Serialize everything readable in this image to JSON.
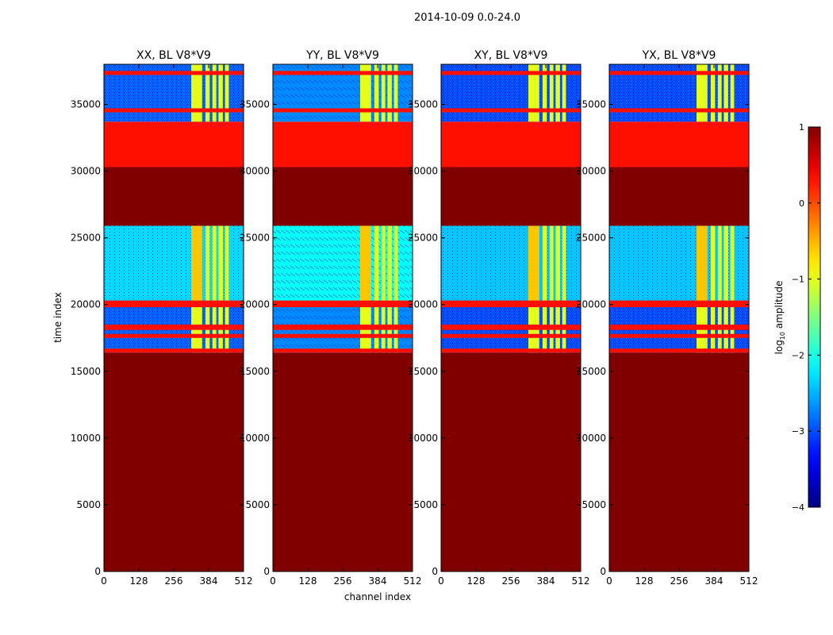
{
  "chart_data": {
    "type": "heatmap",
    "title": "2014-10-09 0.0-24.0",
    "xlabel": "channel index",
    "ylabel": "time index",
    "xlim": [
      0,
      512
    ],
    "ylim": [
      0,
      38000
    ],
    "xticks": [
      0,
      128,
      256,
      384,
      512
    ],
    "xtick_labels": [
      "0",
      "128",
      "256",
      "384",
      "512"
    ],
    "yticks": [
      0,
      5000,
      10000,
      15000,
      20000,
      25000,
      30000,
      35000
    ],
    "ytick_labels": [
      "0",
      "5000",
      "10000",
      "15000",
      "20000",
      "25000",
      "30000",
      "35000"
    ],
    "colorbar": {
      "label": "log10 amplitude",
      "label_prefix": "log",
      "label_sub": "10",
      "label_suffix": " amplitude",
      "range": [
        -4,
        1
      ],
      "ticks": [
        1,
        0,
        -1,
        -2,
        -3,
        -4
      ],
      "tick_labels": [
        "1",
        "0",
        "−1",
        "−2",
        "−3",
        "−4"
      ],
      "colormap": "jet"
    },
    "panels": [
      {
        "name": "XX, BL V8*V9",
        "quiet_level": -2.9,
        "texture": "noisy"
      },
      {
        "name": "YY, BL V8*V9",
        "quiet_level": -2.7,
        "texture": "striated"
      },
      {
        "name": "XY, BL V8*V9",
        "quiet_level": -3.0,
        "texture": "noisy"
      },
      {
        "name": "YX, BL V8*V9",
        "quiet_level": -3.0,
        "texture": "noisy"
      }
    ],
    "time_blocks": [
      {
        "t0": 0,
        "t1": 16400,
        "log_amp": 1.0,
        "kind": "flagged"
      },
      {
        "t0": 16400,
        "t1": 20300,
        "log_amp": -2.8,
        "kind": "data"
      },
      {
        "t0": 20300,
        "t1": 25900,
        "log_amp": -2.2,
        "kind": "data_rfi"
      },
      {
        "t0": 25900,
        "t1": 30300,
        "log_amp": 1.0,
        "kind": "flagged"
      },
      {
        "t0": 30300,
        "t1": 33700,
        "log_amp": 0.3,
        "kind": "partial"
      },
      {
        "t0": 33700,
        "t1": 38000,
        "log_amp": -2.8,
        "kind": "data"
      }
    ],
    "orange_bands": [
      {
        "t0": 16400,
        "t1": 16700
      },
      {
        "t0": 17500,
        "t1": 17800
      },
      {
        "t0": 18100,
        "t1": 18500
      },
      {
        "t0": 19800,
        "t1": 20300
      },
      {
        "t0": 34400,
        "t1": 34700
      },
      {
        "t0": 37200,
        "t1": 37500
      }
    ],
    "bright_channels": {
      "log_amp": -1.0,
      "ranges": [
        [
          320,
          360
        ],
        [
          372,
          388
        ],
        [
          398,
          412
        ],
        [
          420,
          436
        ],
        [
          444,
          458
        ]
      ]
    }
  }
}
